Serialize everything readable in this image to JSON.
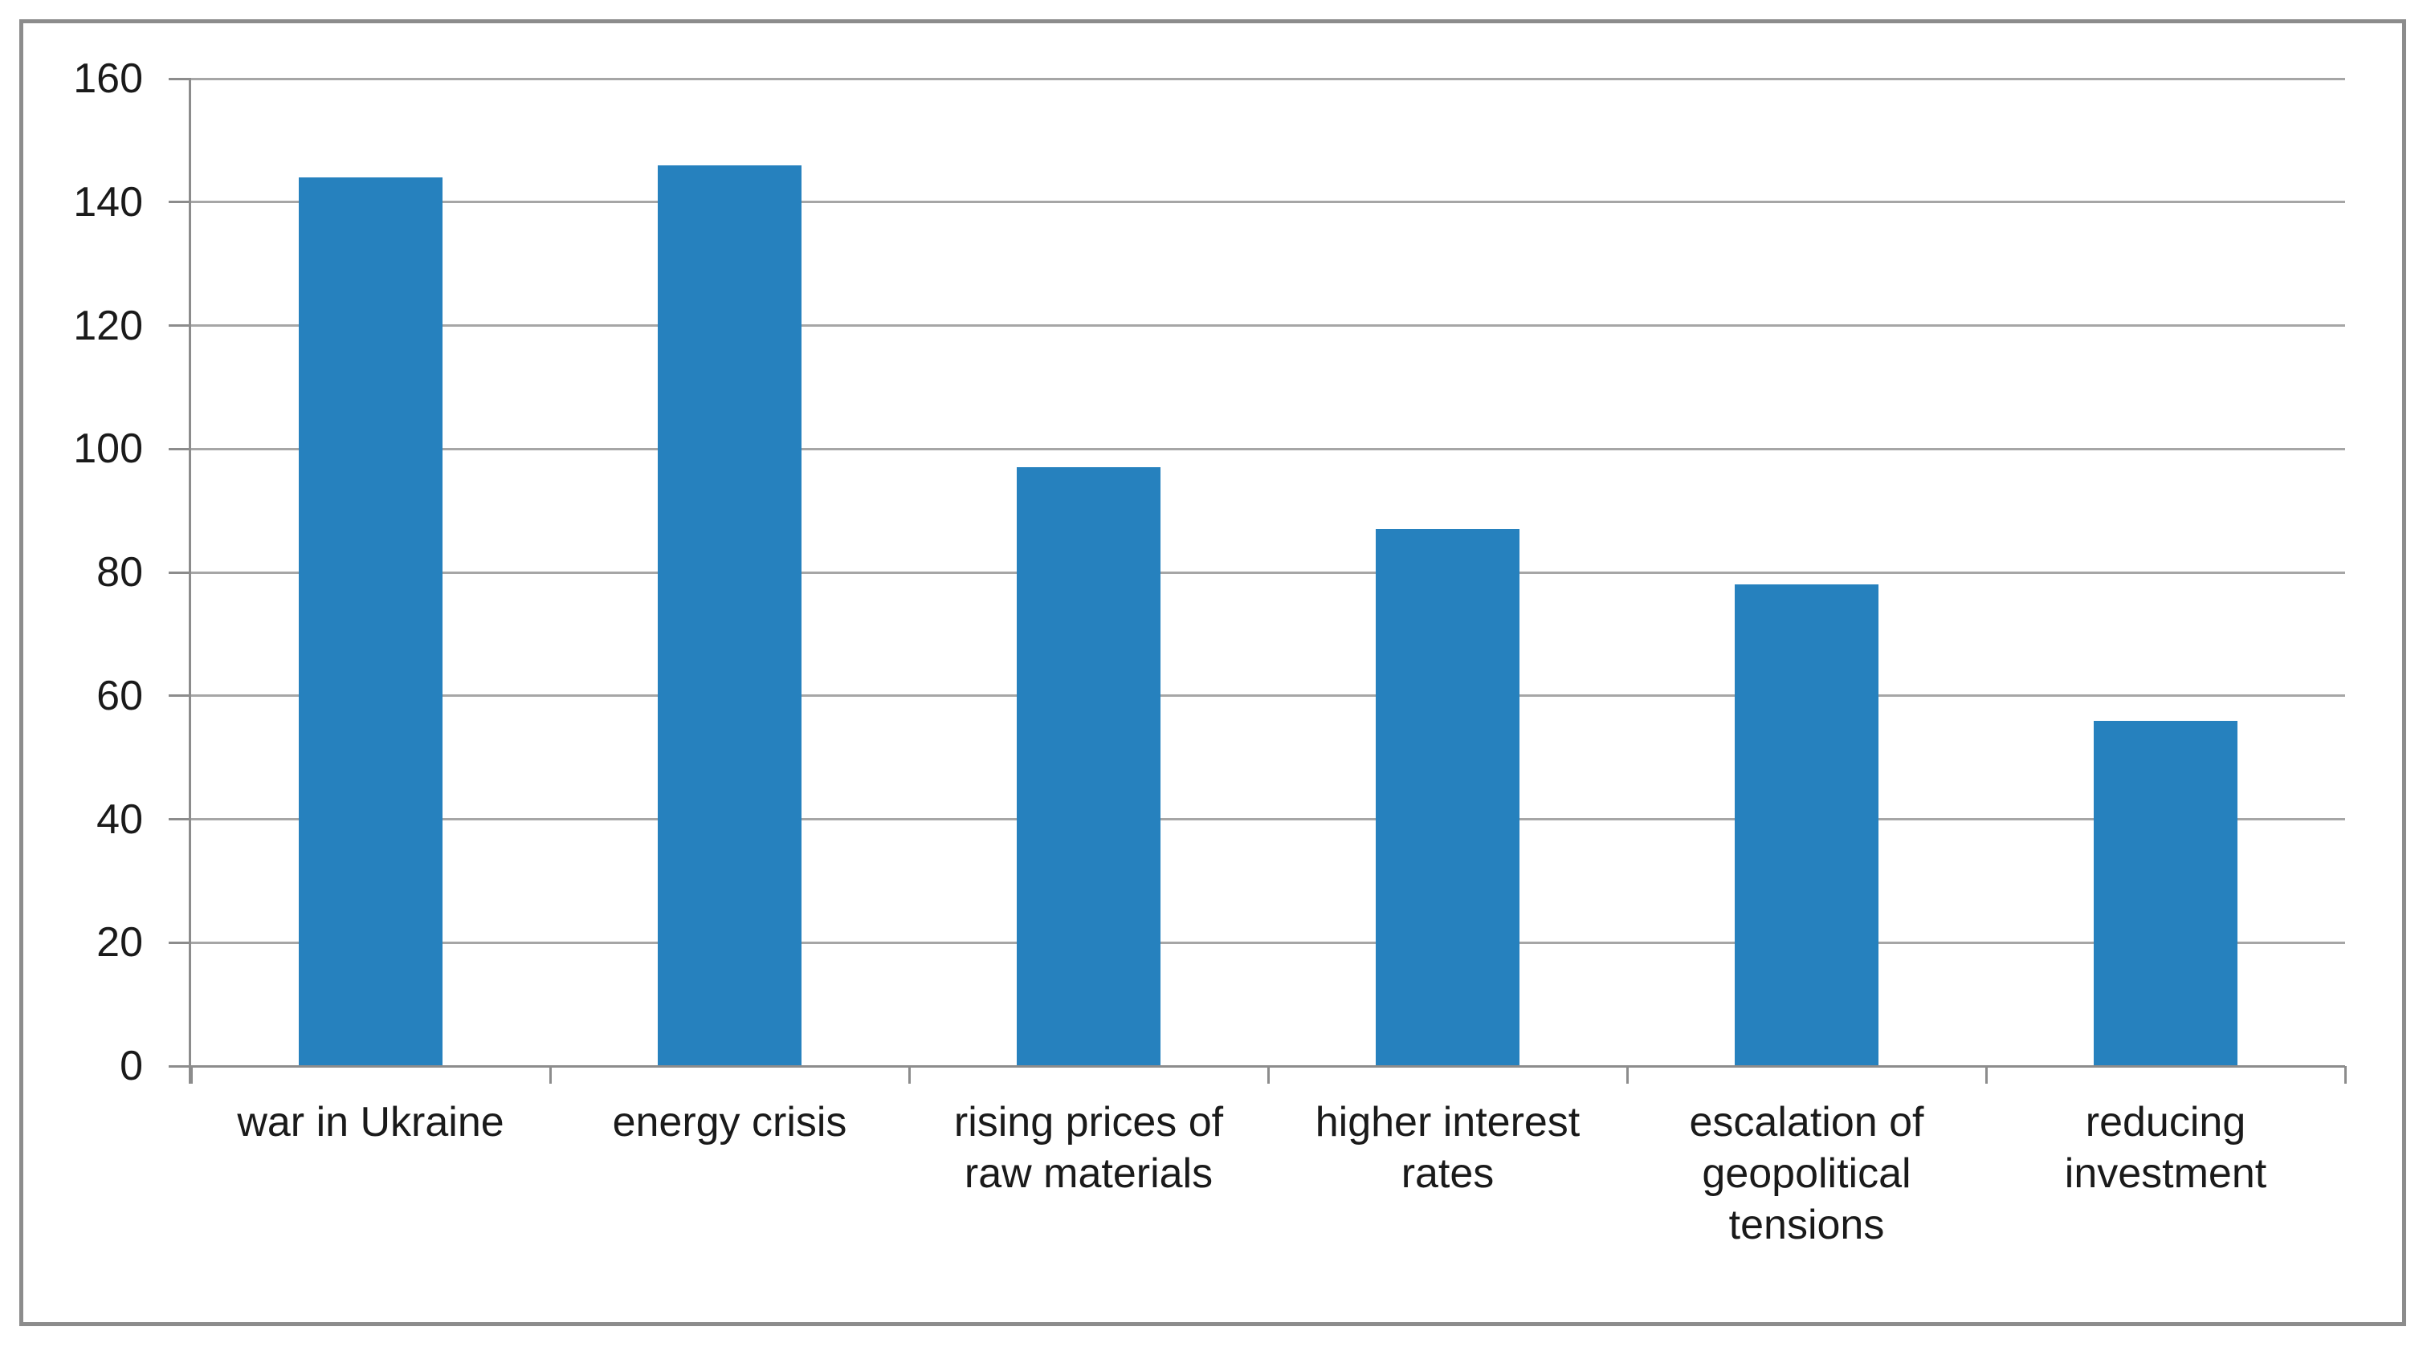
{
  "chart_data": {
    "type": "bar",
    "title": "",
    "xlabel": "",
    "ylabel": "",
    "categories": [
      "war in Ukraine",
      "energy crisis",
      "rising prices of raw materials",
      "higher interest rates",
      "escalation of geopolitical tensions",
      "reducing investment"
    ],
    "category_display_lines": [
      "war in Ukraine",
      "energy crisis",
      "rising prices of\nraw materials",
      "higher interest\nrates",
      "escalation of\ngeopolitical\ntensions",
      "reducing\ninvestment"
    ],
    "values": [
      144,
      146,
      97,
      87,
      78,
      56
    ],
    "y_axis": {
      "min": 0,
      "max": 160,
      "step": 20,
      "tick_labels": [
        "0",
        "20",
        "40",
        "60",
        "80",
        "100",
        "120",
        "140",
        "160"
      ]
    },
    "grid": true,
    "legend": false,
    "layout_hints": {
      "gridlines": "horizontal only",
      "bar_gap_ratio": 1.5,
      "tick_marks": "outside"
    },
    "colors": {
      "bar_fill": "#2681BE",
      "gridline": "#A6A6A6",
      "axis_line": "#8C8C8C",
      "chart_border": "#8C8C8C",
      "text": "#1A1A1A",
      "background": "#FFFFFF"
    }
  }
}
